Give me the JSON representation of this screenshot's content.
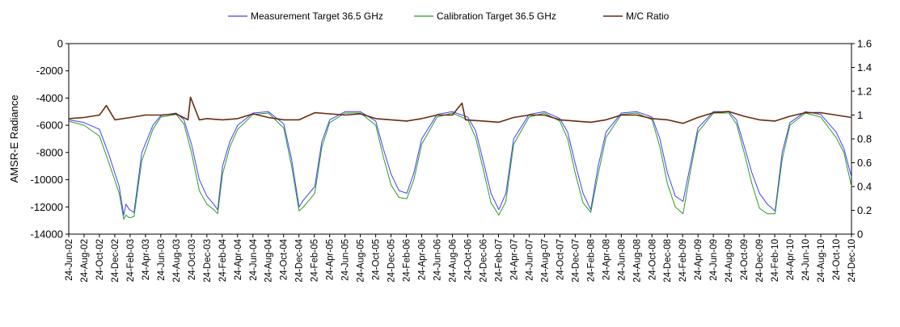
{
  "chart_data": {
    "type": "line",
    "title": "",
    "xlabel": "",
    "ylabel": "AMSR-E Radiance",
    "y2label": "",
    "ylim": [
      -14000,
      0
    ],
    "y2lim": [
      0,
      1.6
    ],
    "yticks": [
      -14000,
      -12000,
      -10000,
      -8000,
      -6000,
      -4000,
      -2000,
      0
    ],
    "y2ticks": [
      0,
      0.2,
      0.4,
      0.6,
      0.8,
      1,
      1.2,
      1.4,
      1.6
    ],
    "y2tick_labels": [
      "0",
      "0.2",
      "0.4",
      "0.6",
      "0.8",
      "1",
      "1.2",
      "1.4",
      "1.6"
    ],
    "xlim": [
      "2002-06-24",
      "2010-12-24"
    ],
    "x_tick_labels": [
      "24-Jun-02",
      "24-Aug-02",
      "24-Oct-02",
      "24-Dec-02",
      "24-Feb-03",
      "24-Apr-03",
      "24-Jun-03",
      "24-Aug-03",
      "24-Oct-03",
      "24-Dec-03",
      "24-Feb-04",
      "24-Apr-04",
      "24-Jun-04",
      "24-Aug-04",
      "24-Oct-04",
      "24-Dec-04",
      "24-Feb-05",
      "24-Apr-05",
      "24-Jun-05",
      "24-Aug-05",
      "24-Oct-05",
      "24-Dec-05",
      "24-Feb-06",
      "24-Apr-06",
      "24-Jun-06",
      "24-Aug-06",
      "24-Oct-06",
      "24-Dec-06",
      "24-Feb-07",
      "24-Apr-07",
      "24-Jun-07",
      "24-Aug-07",
      "24-Oct-07",
      "24-Dec-07",
      "24-Feb-08",
      "24-Apr-08",
      "24-Jun-08",
      "24-Aug-08",
      "24-Oct-08",
      "24-Dec-08",
      "24-Feb-09",
      "24-Apr-09",
      "24-Jun-09",
      "24-Aug-09",
      "24-Oct-09",
      "24-Dec-09",
      "24-Feb-10",
      "24-Apr-10",
      "24-Jun-10",
      "24-Aug-10",
      "24-Oct-10",
      "24-Dec-10"
    ],
    "grid": false,
    "legend_position": "top",
    "series": [
      {
        "name": "Measurement Target 36.5 GHz",
        "axis": "left",
        "color": "#4040ff",
        "x": [
          "2002-06-24",
          "2002-08-24",
          "2002-10-24",
          "2002-12-01",
          "2003-01-10",
          "2003-01-28",
          "2003-02-06",
          "2003-02-20",
          "2003-03-10",
          "2003-04-10",
          "2003-05-24",
          "2003-06-24",
          "2003-08-24",
          "2003-09-24",
          "2003-10-24",
          "2003-11-24",
          "2003-12-24",
          "2004-01-20",
          "2004-02-05",
          "2004-02-24",
          "2004-03-24",
          "2004-04-24",
          "2004-06-24",
          "2004-08-24",
          "2004-10-24",
          "2004-11-24",
          "2004-12-24",
          "2005-01-10",
          "2005-02-24",
          "2005-03-24",
          "2005-04-24",
          "2005-06-24",
          "2005-08-24",
          "2005-10-24",
          "2005-11-24",
          "2005-12-24",
          "2006-01-24",
          "2006-02-24",
          "2006-03-24",
          "2006-04-24",
          "2006-06-24",
          "2006-08-24",
          "2006-10-24",
          "2006-11-24",
          "2006-12-24",
          "2007-01-24",
          "2007-02-24",
          "2007-03-24",
          "2007-04-24",
          "2007-06-24",
          "2007-08-24",
          "2007-10-24",
          "2007-11-24",
          "2007-12-24",
          "2008-01-24",
          "2008-02-24",
          "2008-03-24",
          "2008-04-24",
          "2008-06-24",
          "2008-08-24",
          "2008-10-24",
          "2008-11-24",
          "2008-12-24",
          "2009-01-24",
          "2009-02-24",
          "2009-03-24",
          "2009-04-24",
          "2009-06-24",
          "2009-08-24",
          "2009-09-24",
          "2009-10-24",
          "2009-11-24",
          "2009-12-24",
          "2010-01-24",
          "2010-02-24",
          "2010-03-24",
          "2010-04-24",
          "2010-06-24",
          "2010-08-24",
          "2010-10-24",
          "2010-11-24",
          "2010-12-24"
        ],
        "y": [
          -5600,
          -5800,
          -6300,
          -8200,
          -10500,
          -12600,
          -11800,
          -12200,
          -12400,
          -8000,
          -6000,
          -5300,
          -5100,
          -5600,
          -7400,
          -10000,
          -11200,
          -11800,
          -12200,
          -9000,
          -7200,
          -6000,
          -5100,
          -5000,
          -5900,
          -8500,
          -12000,
          -11500,
          -10500,
          -7200,
          -5600,
          -5000,
          -5000,
          -5700,
          -7800,
          -9600,
          -10800,
          -11000,
          -9500,
          -7000,
          -5200,
          -5000,
          -5400,
          -6400,
          -8600,
          -11000,
          -12200,
          -11000,
          -7000,
          -5200,
          -5000,
          -5500,
          -6500,
          -8800,
          -11000,
          -12200,
          -9000,
          -6500,
          -5100,
          -5000,
          -5400,
          -7000,
          -9500,
          -11200,
          -11600,
          -9000,
          -6200,
          -5000,
          -5000,
          -5600,
          -7500,
          -9500,
          -11000,
          -11800,
          -12300,
          -8000,
          -5800,
          -5000,
          -5200,
          -6500,
          -7700,
          -9800
        ]
      },
      {
        "name": "Calibration Target 36.5 GHz",
        "axis": "left",
        "color": "#2a9a2a",
        "x": [
          "2002-06-24",
          "2002-08-24",
          "2002-10-24",
          "2002-12-01",
          "2003-01-10",
          "2003-01-28",
          "2003-02-06",
          "2003-02-20",
          "2003-03-10",
          "2003-04-10",
          "2003-05-24",
          "2003-06-24",
          "2003-08-24",
          "2003-09-24",
          "2003-10-24",
          "2003-11-24",
          "2003-12-24",
          "2004-01-20",
          "2004-02-05",
          "2004-02-24",
          "2004-03-24",
          "2004-04-24",
          "2004-06-24",
          "2004-08-24",
          "2004-10-24",
          "2004-11-24",
          "2004-12-24",
          "2005-01-10",
          "2005-02-24",
          "2005-03-24",
          "2005-04-24",
          "2005-06-24",
          "2005-08-24",
          "2005-10-24",
          "2005-11-24",
          "2005-12-24",
          "2006-01-24",
          "2006-02-24",
          "2006-03-24",
          "2006-04-24",
          "2006-06-24",
          "2006-08-24",
          "2006-10-24",
          "2006-11-24",
          "2006-12-24",
          "2007-01-24",
          "2007-02-24",
          "2007-03-24",
          "2007-04-24",
          "2007-06-24",
          "2007-08-24",
          "2007-10-24",
          "2007-11-24",
          "2007-12-24",
          "2008-01-24",
          "2008-02-24",
          "2008-03-24",
          "2008-04-24",
          "2008-06-24",
          "2008-08-24",
          "2008-10-24",
          "2008-11-24",
          "2008-12-24",
          "2009-01-24",
          "2009-02-24",
          "2009-03-24",
          "2009-04-24",
          "2009-06-24",
          "2009-08-24",
          "2009-09-24",
          "2009-10-24",
          "2009-11-24",
          "2009-12-24",
          "2010-01-24",
          "2010-02-24",
          "2010-03-24",
          "2010-04-24",
          "2010-06-24",
          "2010-08-24",
          "2010-10-24",
          "2010-11-24",
          "2010-12-24"
        ],
        "y": [
          -5700,
          -6000,
          -6800,
          -8800,
          -11000,
          -12900,
          -12600,
          -12800,
          -12700,
          -8600,
          -6300,
          -5400,
          -5200,
          -5900,
          -8000,
          -10800,
          -11800,
          -12200,
          -12500,
          -9600,
          -7600,
          -6300,
          -5200,
          -5100,
          -6200,
          -9000,
          -12300,
          -12000,
          -11000,
          -7600,
          -5800,
          -5100,
          -5100,
          -6000,
          -8400,
          -10400,
          -11300,
          -11400,
          -10000,
          -7400,
          -5400,
          -5100,
          -5600,
          -6900,
          -9200,
          -11700,
          -12600,
          -11600,
          -7400,
          -5400,
          -5100,
          -5700,
          -7000,
          -9500,
          -11700,
          -12400,
          -9600,
          -6900,
          -5200,
          -5100,
          -5600,
          -7600,
          -10300,
          -12000,
          -12500,
          -9500,
          -6500,
          -5100,
          -5100,
          -5900,
          -8000,
          -10300,
          -12100,
          -12500,
          -12500,
          -8500,
          -6000,
          -5100,
          -5400,
          -6900,
          -8000,
          -10500
        ]
      },
      {
        "name": "M/C Ratio",
        "axis": "right",
        "color": "#6b2a0a",
        "x": [
          "2002-06-24",
          "2002-08-24",
          "2002-10-24",
          "2002-11-20",
          "2002-12-24",
          "2003-02-24",
          "2003-04-24",
          "2003-06-24",
          "2003-08-24",
          "2003-10-10",
          "2003-10-20",
          "2003-11-24",
          "2003-12-24",
          "2004-02-24",
          "2004-04-24",
          "2004-06-24",
          "2004-08-24",
          "2004-10-24",
          "2004-12-24",
          "2005-02-24",
          "2005-04-24",
          "2005-06-24",
          "2005-08-24",
          "2005-10-24",
          "2005-12-24",
          "2006-02-24",
          "2006-04-24",
          "2006-06-24",
          "2006-08-24",
          "2006-10-01",
          "2006-10-15",
          "2006-12-24",
          "2007-02-24",
          "2007-04-24",
          "2007-06-24",
          "2007-08-24",
          "2007-10-24",
          "2007-12-24",
          "2008-02-24",
          "2008-04-24",
          "2008-06-24",
          "2008-08-24",
          "2008-10-24",
          "2008-12-24",
          "2009-02-24",
          "2009-04-24",
          "2009-06-24",
          "2009-08-24",
          "2009-10-24",
          "2009-12-24",
          "2010-02-24",
          "2010-04-24",
          "2010-06-24",
          "2010-08-24",
          "2010-10-24",
          "2010-12-24"
        ],
        "y": [
          0.97,
          0.98,
          1.0,
          1.08,
          0.96,
          0.98,
          1.0,
          1.0,
          1.01,
          0.96,
          1.15,
          0.96,
          0.97,
          0.96,
          0.97,
          1.01,
          0.98,
          0.96,
          0.96,
          1.02,
          1.01,
          1.0,
          1.01,
          0.97,
          0.96,
          0.95,
          0.97,
          1.0,
          1.0,
          1.1,
          0.96,
          0.95,
          0.94,
          0.98,
          1.0,
          1.0,
          0.96,
          0.95,
          0.94,
          0.96,
          1.0,
          1.0,
          0.97,
          0.96,
          0.93,
          0.98,
          1.02,
          1.03,
          0.99,
          0.96,
          0.95,
          0.99,
          1.02,
          1.02,
          1.0,
          0.98
        ]
      }
    ]
  }
}
